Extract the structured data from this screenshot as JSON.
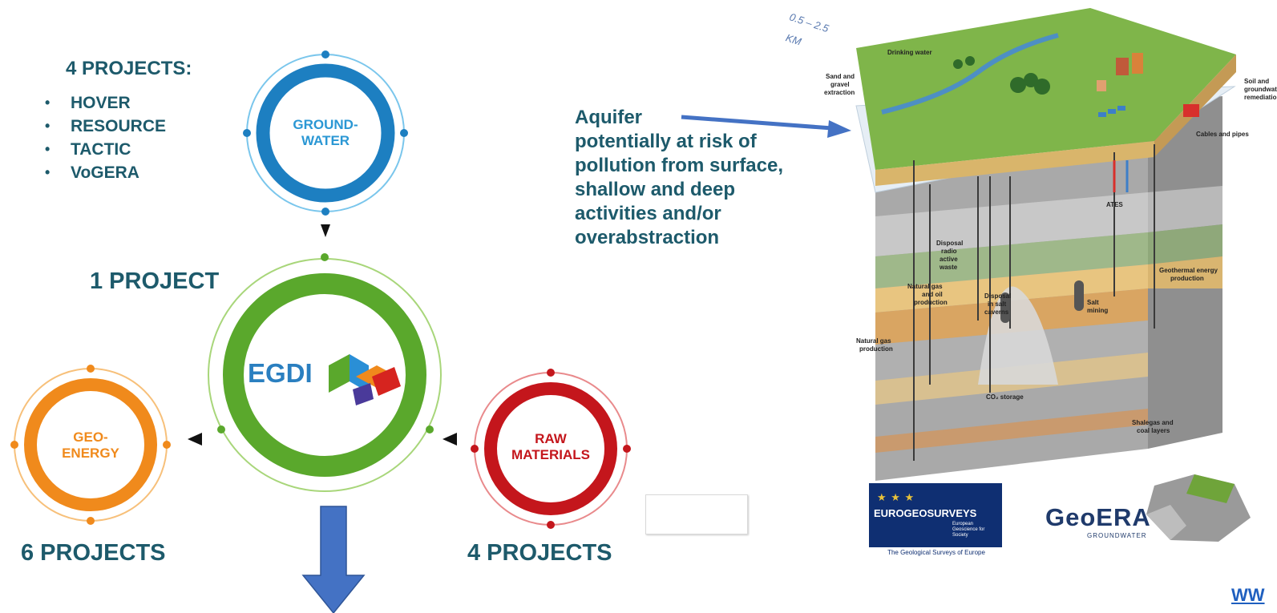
{
  "left_panel": {
    "groundwater_heading": "4 PROJECTS:",
    "groundwater_projects": [
      "HOVER",
      "RESOURCE",
      "TACTIC",
      "VoGERA"
    ],
    "egdi_heading": "1 PROJECT",
    "geoenergy_heading": "6 PROJECTS",
    "raw_materials_heading": "4 PROJECTS"
  },
  "rings": {
    "groundwater": {
      "line1": "GROUND-",
      "line2": "WATER",
      "color": "#1d7fc1"
    },
    "egdi": {
      "label": "EGDI",
      "color": "#5aa82c"
    },
    "geoenergy": {
      "line1": "GEO-",
      "line2": "ENERGY",
      "color": "#f08a1c"
    },
    "raw_materials": {
      "line1": "RAW",
      "line2": "MATERIALS",
      "color": "#c4161c"
    }
  },
  "annotation": {
    "lines": [
      "Aquifer",
      "potentially at risk of",
      "pollution from surface,",
      "shallow and deep",
      "activities and/or",
      "overabstraction"
    ]
  },
  "block_diagram": {
    "depth_top": "0.5 – 2.5",
    "depth_unit": "KM",
    "labels": {
      "drinking_water": "Drinking water",
      "sand_gravel_1": "Sand and",
      "sand_gravel_2": "gravel",
      "sand_gravel_3": "extraction",
      "soil_1": "Soil and",
      "soil_2": "groundwater",
      "soil_3": "remediation",
      "cables": "Cables and pipes",
      "ates": "ATES",
      "disposal_1": "Disposal",
      "disposal_2": "radio",
      "disposal_3": "active",
      "disposal_4": "waste",
      "natural_gas_oil_1": "Natural gas",
      "natural_gas_oil_2": "and oil",
      "natural_gas_oil_3": "production",
      "salt_caverns_1": "Disposal",
      "salt_caverns_2": "in salt",
      "salt_caverns_3": "caverns",
      "salt_mining_1": "Salt",
      "salt_mining_2": "mining",
      "geothermal_1": "Geothermal energy",
      "geothermal_2": "production",
      "natural_gas_1": "Natural gas",
      "natural_gas_2": "production",
      "co2": "CO₂ storage",
      "shale_1": "Shalegas and",
      "shale_2": "coal layers"
    }
  },
  "logos": {
    "eurogeosurveys": {
      "title": "EUROGEOSURVEYS",
      "sub1": "European",
      "sub2": "Geoscience for",
      "sub3": "Society",
      "caption": "The Geological Surveys of Europe"
    },
    "geoera": {
      "title": "GeoERA",
      "sub": "GROUNDWATER"
    }
  },
  "url_fragment": "WW",
  "colors": {
    "text": "#1d5a6b",
    "arrow": "#4472c4"
  }
}
